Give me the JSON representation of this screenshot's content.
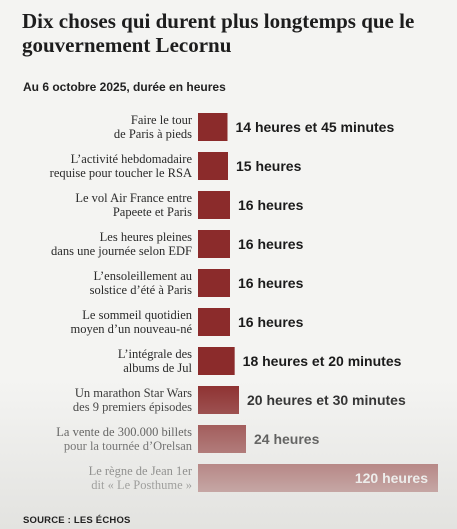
{
  "colors": {
    "bar": "#8b2b2b",
    "background": "#f4f4f2",
    "text": "#1d1d1d"
  },
  "chart_data": {
    "type": "bar",
    "orientation": "horizontal",
    "title": "Dix choses qui durent plus longtemps que le gouvernement Lecornu",
    "subtitle": "Au 6 octobre 2025, durée en heures",
    "source": "SOURCE : LES ÉCHOS",
    "categories": [
      [
        "Faire le tour",
        "de Paris à pieds"
      ],
      [
        "L’activité hebdomadaire",
        "requise pour toucher le RSA"
      ],
      [
        "Le vol Air France entre",
        "Papeete et Paris"
      ],
      [
        "Les heures pleines",
        "dans une journée selon EDF"
      ],
      [
        "L’ensoleillement au",
        "solstice d’été à Paris"
      ],
      [
        "Le sommeil quotidien",
        "moyen d’un nouveau-né"
      ],
      [
        "L’intégrale des",
        "albums de Jul"
      ],
      [
        "Un marathon Star Wars",
        "des 9 premiers épisodes"
      ],
      [
        "La vente de 300.000 billets",
        "pour la tournée d’Orelsan"
      ],
      [
        "Le règne de Jean 1er",
        "dit « Le Posthume »"
      ]
    ],
    "values": [
      14.75,
      15,
      16,
      16,
      16,
      16,
      18.33,
      20.5,
      24,
      120
    ],
    "value_labels": [
      "14 heures et 45 minutes",
      "15 heures",
      "16 heures",
      "16 heures",
      "16 heures",
      "16 heures",
      "18 heures et 20 minutes",
      "20 heures et 30 minutes",
      "24 heures",
      "120 heures"
    ],
    "xlim": [
      0,
      120
    ],
    "grid": false,
    "legend": "none"
  }
}
